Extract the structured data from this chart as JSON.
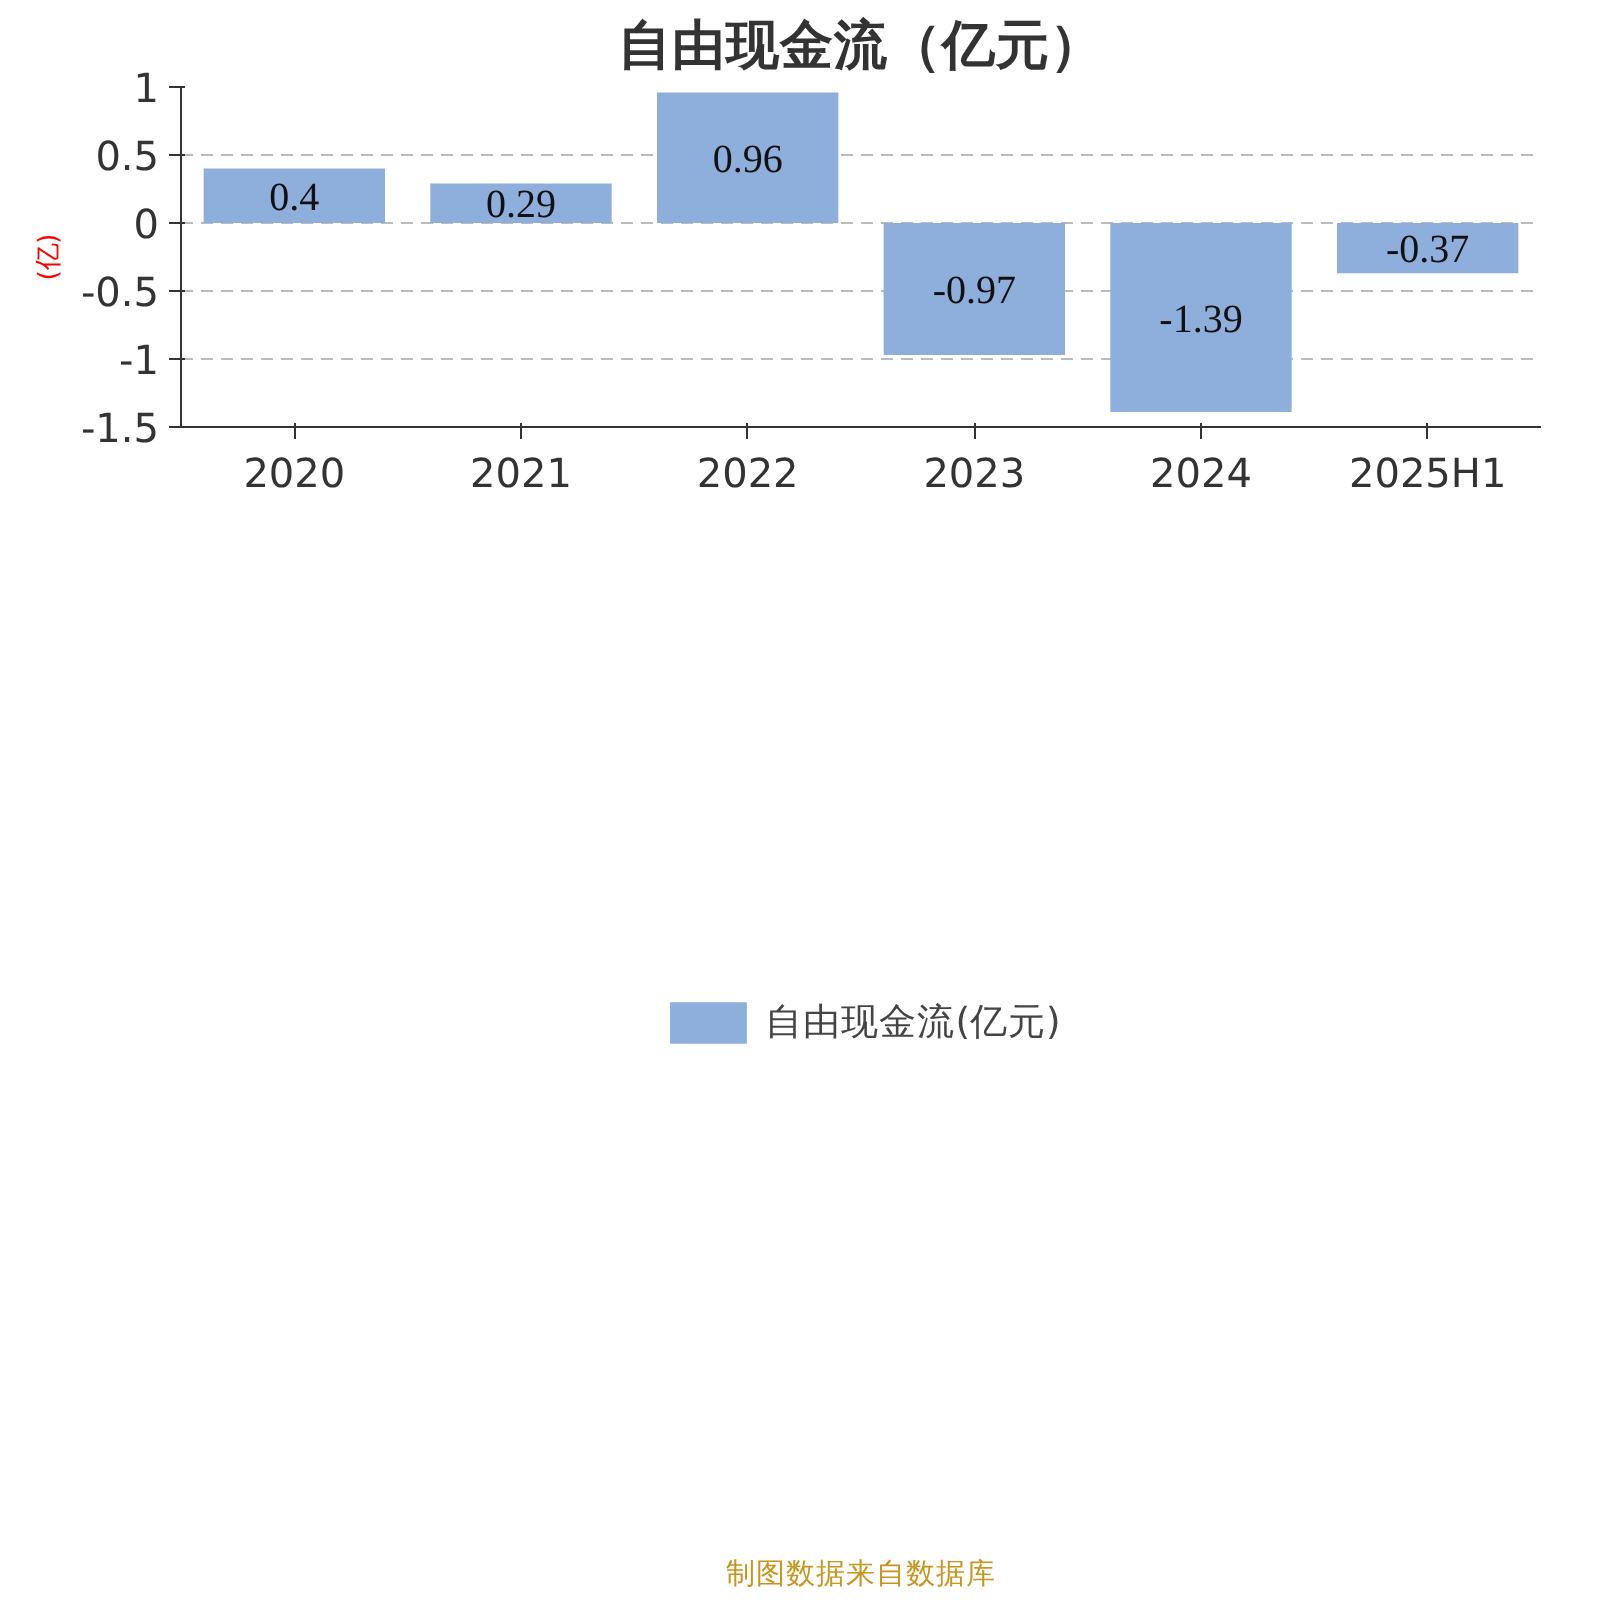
{
  "chart_data": {
    "type": "bar",
    "title": "自由现金流（亿元）",
    "ylabel": "(亿)",
    "categories": [
      "2020",
      "2021",
      "2022",
      "2023",
      "2024",
      "2025H1"
    ],
    "series": [
      {
        "name": "自由现金流(亿元)",
        "color": "#8eaedb",
        "values": [
          0.4,
          0.29,
          0.96,
          -0.97,
          -1.39,
          -0.37
        ]
      }
    ],
    "ylim": [
      -1.5,
      1
    ],
    "yticks": [
      -1.5,
      -1,
      -0.5,
      0,
      0.5,
      1
    ],
    "grid": "y",
    "legend": "bottom",
    "data_labels": true,
    "annotations": [
      "制图数据来自数据库"
    ]
  }
}
